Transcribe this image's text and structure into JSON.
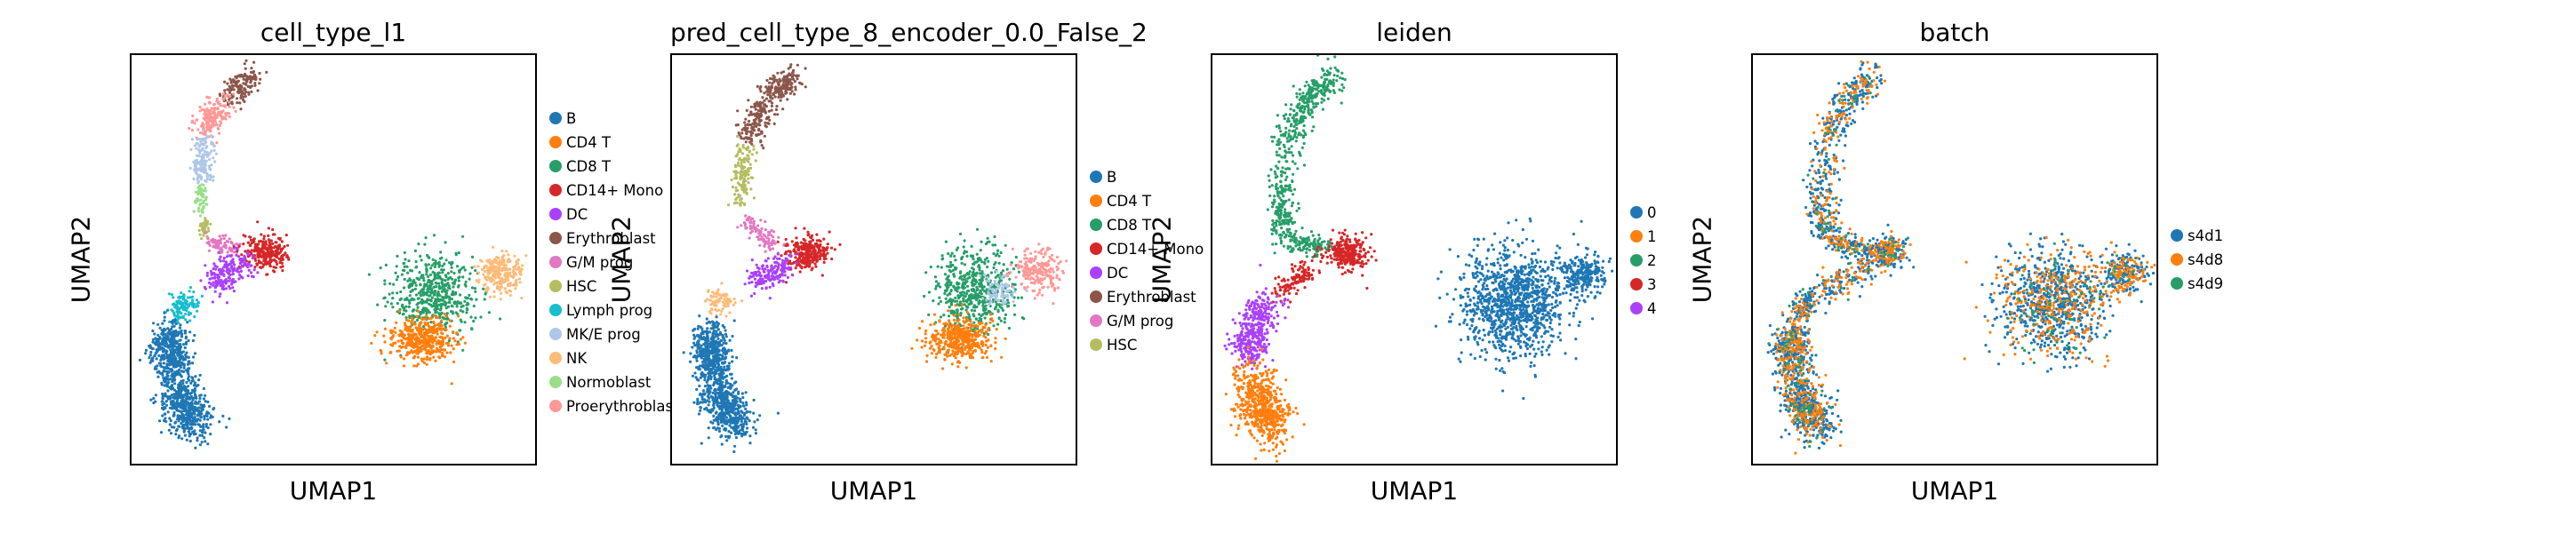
{
  "chart_data": [
    {
      "type": "scatter",
      "title": "cell_type_l1",
      "xlabel": "UMAP1",
      "ylabel": "UMAP2",
      "legend_position": "right",
      "categories": [
        {
          "name": "B",
          "color": "#1f77b4"
        },
        {
          "name": "CD4 T",
          "color": "#ff7f0e"
        },
        {
          "name": "CD8 T",
          "color": "#279e68"
        },
        {
          "name": "CD14+ Mono",
          "color": "#d62728"
        },
        {
          "name": "DC",
          "color": "#aa40fc"
        },
        {
          "name": "Erythroblast",
          "color": "#8c564b"
        },
        {
          "name": "G/M prog",
          "color": "#e377c2"
        },
        {
          "name": "HSC",
          "color": "#b5bd61"
        },
        {
          "name": "Lymph prog",
          "color": "#17becf"
        },
        {
          "name": "MK/E prog",
          "color": "#aec7e8"
        },
        {
          "name": "NK",
          "color": "#ffbb78"
        },
        {
          "name": "Normoblast",
          "color": "#98df8a"
        },
        {
          "name": "Proerythroblast",
          "color": "#ff9896"
        }
      ]
    },
    {
      "type": "scatter",
      "title": "pred_cell_type_8_encoder_0.0_False_2",
      "xlabel": "UMAP1",
      "ylabel": "UMAP2",
      "legend_position": "right",
      "categories": [
        {
          "name": "B",
          "color": "#1f77b4"
        },
        {
          "name": "CD4 T",
          "color": "#ff7f0e"
        },
        {
          "name": "CD8 T",
          "color": "#279e68"
        },
        {
          "name": "CD14+ Mono",
          "color": "#d62728"
        },
        {
          "name": "DC",
          "color": "#aa40fc"
        },
        {
          "name": "Erythroblast",
          "color": "#8c564b"
        },
        {
          "name": "G/M prog",
          "color": "#e377c2"
        },
        {
          "name": "HSC",
          "color": "#b5bd61"
        }
      ]
    },
    {
      "type": "scatter",
      "title": "leiden",
      "xlabel": "UMAP1",
      "ylabel": "UMAP2",
      "legend_position": "right",
      "categories": [
        {
          "name": "0",
          "color": "#1f77b4"
        },
        {
          "name": "1",
          "color": "#ff7f0e"
        },
        {
          "name": "2",
          "color": "#279e68"
        },
        {
          "name": "3",
          "color": "#d62728"
        },
        {
          "name": "4",
          "color": "#aa40fc"
        }
      ]
    },
    {
      "type": "scatter",
      "title": "batch",
      "xlabel": "UMAP1",
      "ylabel": "UMAP2",
      "legend_position": "right",
      "categories": [
        {
          "name": "s4d1",
          "color": "#1f77b4"
        },
        {
          "name": "s4d8",
          "color": "#ff7f0e"
        },
        {
          "name": "s4d9",
          "color": "#279e68"
        }
      ]
    }
  ]
}
